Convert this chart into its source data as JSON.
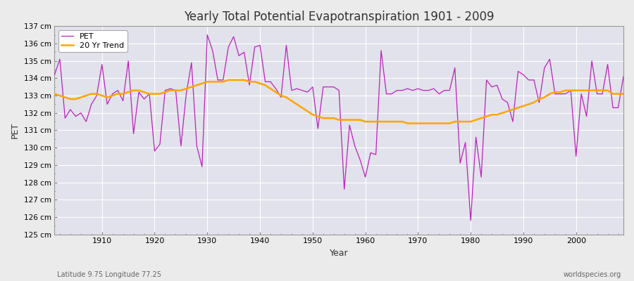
{
  "title": "Yearly Total Potential Evapotranspiration 1901 - 2009",
  "xlabel": "Year",
  "ylabel": "PET",
  "bottom_left_text": "Latitude 9.75 Longitude 77.25",
  "bottom_right_text": "worldspecies.org",
  "pet_color": "#BB22BB",
  "trend_color": "#FFA500",
  "bg_color": "#EBEBEB",
  "plot_bg_color": "#E2E2EC",
  "ylim": [
    125,
    137
  ],
  "xlim": [
    1901,
    2009
  ],
  "ytick_labels": [
    "125 cm",
    "126 cm",
    "127 cm",
    "128 cm",
    "129 cm",
    "130 cm",
    "131 cm",
    "132 cm",
    "133 cm",
    "134 cm",
    "135 cm",
    "136 cm",
    "137 cm"
  ],
  "ytick_values": [
    125,
    126,
    127,
    128,
    129,
    130,
    131,
    132,
    133,
    134,
    135,
    136,
    137
  ],
  "pet_years": [
    1901,
    1902,
    1903,
    1904,
    1905,
    1906,
    1907,
    1908,
    1909,
    1910,
    1911,
    1912,
    1913,
    1914,
    1915,
    1916,
    1917,
    1918,
    1919,
    1920,
    1921,
    1922,
    1923,
    1924,
    1925,
    1926,
    1927,
    1928,
    1929,
    1930,
    1931,
    1932,
    1933,
    1934,
    1935,
    1936,
    1937,
    1938,
    1939,
    1940,
    1941,
    1942,
    1943,
    1944,
    1945,
    1946,
    1947,
    1948,
    1949,
    1950,
    1951,
    1952,
    1953,
    1954,
    1955,
    1956,
    1957,
    1958,
    1959,
    1960,
    1961,
    1962,
    1963,
    1964,
    1965,
    1966,
    1967,
    1968,
    1969,
    1970,
    1971,
    1972,
    1973,
    1974,
    1975,
    1976,
    1977,
    1978,
    1979,
    1980,
    1981,
    1982,
    1983,
    1984,
    1985,
    1986,
    1987,
    1988,
    1989,
    1990,
    1991,
    1992,
    1993,
    1994,
    1995,
    1996,
    1997,
    1998,
    1999,
    2000,
    2001,
    2002,
    2003,
    2004,
    2005,
    2006,
    2007,
    2008,
    2009
  ],
  "pet_values": [
    134.2,
    135.1,
    131.7,
    132.2,
    131.8,
    132.0,
    131.5,
    132.5,
    133.0,
    134.8,
    132.5,
    133.1,
    133.3,
    132.7,
    135.0,
    130.8,
    133.2,
    132.8,
    133.1,
    129.8,
    130.2,
    133.3,
    133.4,
    133.3,
    130.1,
    133.1,
    134.9,
    130.1,
    128.9,
    136.5,
    135.6,
    133.9,
    133.9,
    135.8,
    136.4,
    135.3,
    135.5,
    133.6,
    135.8,
    135.9,
    133.8,
    133.8,
    133.4,
    132.9,
    135.9,
    133.3,
    133.4,
    133.3,
    133.2,
    133.5,
    131.1,
    133.5,
    133.5,
    133.5,
    133.3,
    127.6,
    131.3,
    130.1,
    129.3,
    128.3,
    129.7,
    129.6,
    135.6,
    133.1,
    133.1,
    133.3,
    133.3,
    133.4,
    133.3,
    133.4,
    133.3,
    133.3,
    133.4,
    133.1,
    133.3,
    133.3,
    134.6,
    129.1,
    130.3,
    125.8,
    130.6,
    128.3,
    133.9,
    133.5,
    133.6,
    132.8,
    132.6,
    131.5,
    134.4,
    134.2,
    133.9,
    133.9,
    132.6,
    134.6,
    135.1,
    133.1,
    133.1,
    133.1,
    133.3,
    129.5,
    133.1,
    131.8,
    135.0,
    133.1,
    133.1,
    134.8,
    132.3,
    132.3,
    134.1
  ],
  "trend_values": [
    133.1,
    133.0,
    132.9,
    132.8,
    132.8,
    132.9,
    133.0,
    133.1,
    133.1,
    133.0,
    132.9,
    133.0,
    133.1,
    133.1,
    133.2,
    133.3,
    133.3,
    133.2,
    133.1,
    133.1,
    133.1,
    133.2,
    133.3,
    133.3,
    133.3,
    133.4,
    133.5,
    133.6,
    133.7,
    133.8,
    133.8,
    133.8,
    133.8,
    133.9,
    133.9,
    133.9,
    133.9,
    133.8,
    133.8,
    133.7,
    133.6,
    133.4,
    133.2,
    133.0,
    132.9,
    132.7,
    132.5,
    132.3,
    132.1,
    131.9,
    131.8,
    131.7,
    131.7,
    131.7,
    131.6,
    131.6,
    131.6,
    131.6,
    131.6,
    131.5,
    131.5,
    131.5,
    131.5,
    131.5,
    131.5,
    131.5,
    131.5,
    131.4,
    131.4,
    131.4,
    131.4,
    131.4,
    131.4,
    131.4,
    131.4,
    131.4,
    131.5,
    131.5,
    131.5,
    131.5,
    131.6,
    131.7,
    131.8,
    131.9,
    131.9,
    132.0,
    132.1,
    132.2,
    132.3,
    132.4,
    132.5,
    132.6,
    132.8,
    132.9,
    133.1,
    133.2,
    133.2,
    133.3,
    133.3,
    133.3,
    133.3,
    133.3,
    133.3,
    133.3,
    133.3,
    133.3,
    133.1,
    133.1,
    133.1
  ]
}
